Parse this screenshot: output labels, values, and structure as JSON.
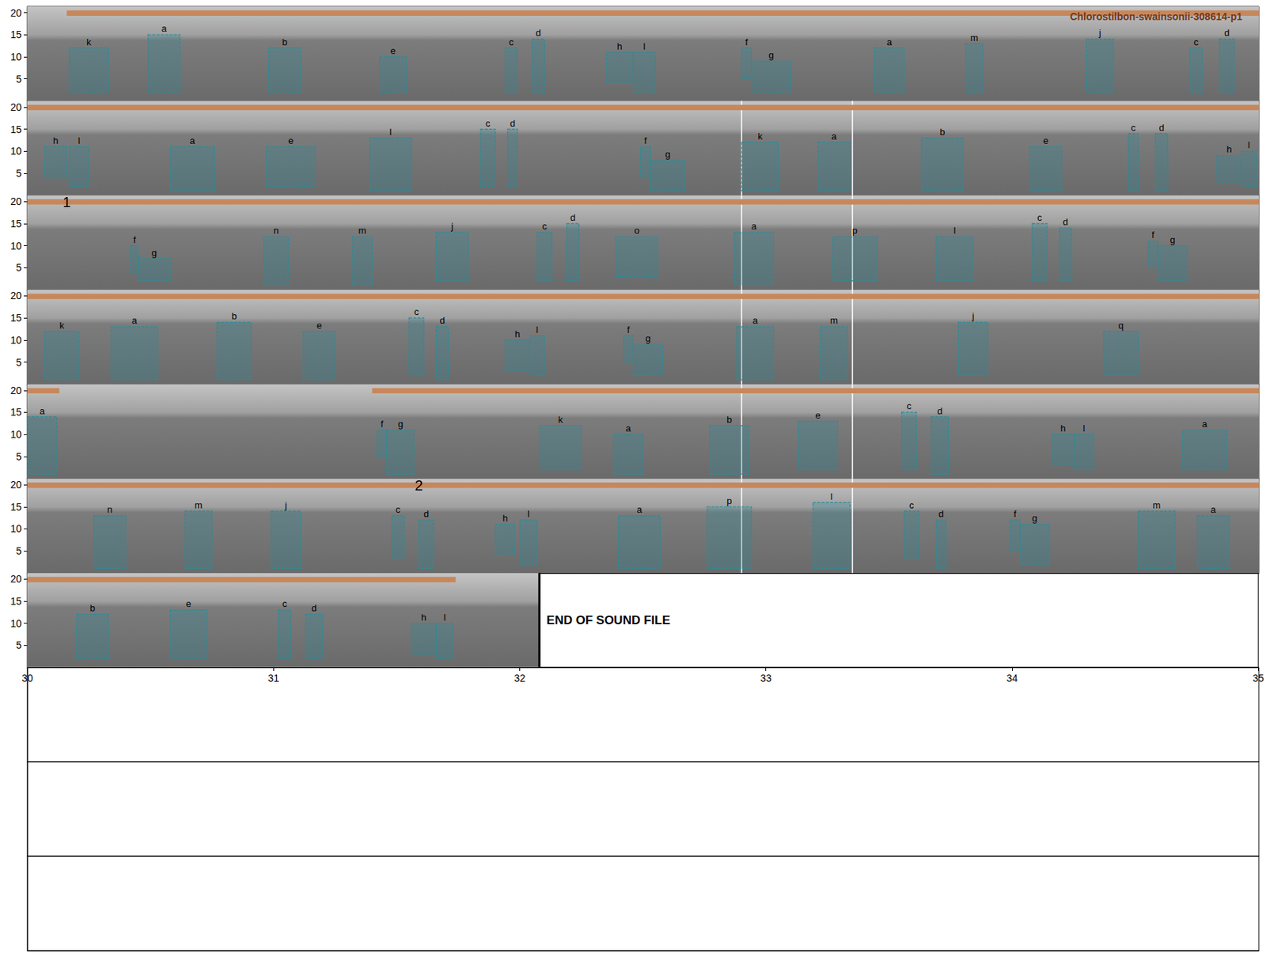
{
  "chart_data": {
    "type": "spectrogram",
    "title": "Chlorostilbon-swainsonii-308614-p1",
    "color": "#2b8c99",
    "ylim": [
      0,
      21.4
    ],
    "yticks": [
      5,
      10,
      15,
      20
    ],
    "rows": [
      {
        "xlim": [
          0,
          5
        ]
      },
      {
        "xlim": [
          5,
          10
        ]
      },
      {
        "xlim": [
          10,
          15
        ]
      },
      {
        "xlim": [
          15,
          20
        ]
      },
      {
        "xlim": [
          20,
          25
        ]
      },
      {
        "xlim": [
          25,
          30
        ]
      },
      {
        "xlim": [
          30,
          35
        ],
        "xticks": [
          30,
          31,
          32,
          33,
          34,
          35
        ]
      },
      {
        "xlim": [
          35,
          40
        ],
        "tick_labels": false
      },
      {
        "xlim": [
          40,
          45
        ],
        "tick_labels": false
      },
      {
        "xlim": [
          45,
          50
        ],
        "tick_labels": false
      }
    ],
    "recording_bar": {
      "color": "#c8875a",
      "band": [
        19.3,
        20.5
      ],
      "segments": [
        [
          0.16,
          20.13
        ],
        [
          21.4,
          31.74
        ]
      ]
    },
    "vlines": [
      7.9,
      8.35,
      12.9,
      13.35,
      17.9,
      18.35,
      22.9,
      23.35,
      27.9,
      28.35
    ],
    "markers": [
      {
        "text": "1",
        "x": 10.16
      },
      {
        "text": "2",
        "x": 26.59
      }
    ],
    "end_of_file": 32.08,
    "end_text": "END OF SOUND FILE",
    "annotations": [
      {
        "label": "k",
        "start": 0.17,
        "end": 0.33,
        "low": 2,
        "high": 12
      },
      {
        "label": "a",
        "start": 0.49,
        "end": 0.62,
        "low": 2,
        "high": 15
      },
      {
        "label": "b",
        "start": 0.98,
        "end": 1.11,
        "low": 2,
        "high": 12
      },
      {
        "label": "e",
        "start": 1.43,
        "end": 1.54,
        "low": 2,
        "high": 10
      },
      {
        "label": "c",
        "start": 1.94,
        "end": 1.99,
        "low": 2,
        "high": 12
      },
      {
        "label": "d",
        "start": 2.05,
        "end": 2.1,
        "low": 2,
        "high": 14
      },
      {
        "label": "h",
        "start": 2.35,
        "end": 2.46,
        "low": 4,
        "high": 11
      },
      {
        "label": "l",
        "start": 2.46,
        "end": 2.55,
        "low": 2,
        "high": 11
      },
      {
        "label": "f",
        "start": 2.9,
        "end": 2.94,
        "low": 5,
        "high": 12
      },
      {
        "label": "g",
        "start": 2.94,
        "end": 3.1,
        "low": 2,
        "high": 9
      },
      {
        "label": "a",
        "start": 3.44,
        "end": 3.56,
        "low": 2,
        "high": 12
      },
      {
        "label": "m",
        "start": 3.81,
        "end": 3.88,
        "low": 2,
        "high": 13
      },
      {
        "label": "j",
        "start": 4.3,
        "end": 4.41,
        "low": 2,
        "high": 14
      },
      {
        "label": "c",
        "start": 4.72,
        "end": 4.77,
        "low": 2,
        "high": 12
      },
      {
        "label": "d",
        "start": 4.84,
        "end": 4.9,
        "low": 2,
        "high": 14
      },
      {
        "label": "h",
        "start": 5.07,
        "end": 5.16,
        "low": 4,
        "high": 11
      },
      {
        "label": "l",
        "start": 5.17,
        "end": 5.25,
        "low": 2,
        "high": 11
      },
      {
        "label": "a",
        "start": 5.58,
        "end": 5.76,
        "low": 1,
        "high": 11
      },
      {
        "label": "e",
        "start": 5.97,
        "end": 6.17,
        "low": 2,
        "high": 11
      },
      {
        "label": "l",
        "start": 6.39,
        "end": 6.56,
        "low": 1,
        "high": 13
      },
      {
        "label": "c",
        "start": 6.84,
        "end": 6.9,
        "low": 2,
        "high": 15
      },
      {
        "label": "d",
        "start": 6.95,
        "end": 6.99,
        "low": 2,
        "high": 15
      },
      {
        "label": "f",
        "start": 7.49,
        "end": 7.53,
        "low": 4,
        "high": 11
      },
      {
        "label": "g",
        "start": 7.53,
        "end": 7.67,
        "low": 1,
        "high": 8
      },
      {
        "label": "k",
        "start": 7.9,
        "end": 8.05,
        "low": 1,
        "high": 12
      },
      {
        "label": "a",
        "start": 8.21,
        "end": 8.34,
        "low": 1,
        "high": 12
      },
      {
        "label": "b",
        "start": 8.63,
        "end": 8.8,
        "low": 1,
        "high": 13
      },
      {
        "label": "e",
        "start": 9.07,
        "end": 9.2,
        "low": 1,
        "high": 11
      },
      {
        "label": "c",
        "start": 9.47,
        "end": 9.51,
        "low": 1,
        "high": 14
      },
      {
        "label": "d",
        "start": 9.58,
        "end": 9.63,
        "low": 1,
        "high": 14
      },
      {
        "label": "h",
        "start": 9.83,
        "end": 9.93,
        "low": 3,
        "high": 9
      },
      {
        "label": "l",
        "start": 9.93,
        "end": 9.99,
        "low": 2,
        "high": 10
      },
      {
        "label": "f",
        "start": 10.42,
        "end": 10.45,
        "low": 4,
        "high": 10
      },
      {
        "label": "g",
        "start": 10.45,
        "end": 10.58,
        "low": 2,
        "high": 7
      },
      {
        "label": "n",
        "start": 10.96,
        "end": 11.06,
        "low": 1,
        "high": 12
      },
      {
        "label": "m",
        "start": 11.32,
        "end": 11.4,
        "low": 1,
        "high": 12
      },
      {
        "label": "j",
        "start": 11.66,
        "end": 11.79,
        "low": 2,
        "high": 13
      },
      {
        "label": "c",
        "start": 12.07,
        "end": 12.13,
        "low": 2,
        "high": 13
      },
      {
        "label": "d",
        "start": 12.19,
        "end": 12.24,
        "low": 2,
        "high": 15
      },
      {
        "label": "o",
        "start": 12.39,
        "end": 12.56,
        "low": 3,
        "high": 12
      },
      {
        "label": "a",
        "start": 12.87,
        "end": 13.03,
        "low": 1,
        "high": 13
      },
      {
        "label": "p",
        "start": 13.27,
        "end": 13.45,
        "low": 2,
        "high": 12
      },
      {
        "label": "l",
        "start": 13.69,
        "end": 13.84,
        "low": 2,
        "high": 12
      },
      {
        "label": "c",
        "start": 14.08,
        "end": 14.14,
        "low": 2,
        "high": 15
      },
      {
        "label": "d",
        "start": 14.19,
        "end": 14.24,
        "low": 2,
        "high": 14
      },
      {
        "label": "f",
        "start": 14.55,
        "end": 14.59,
        "low": 5,
        "high": 11
      },
      {
        "label": "g",
        "start": 14.59,
        "end": 14.71,
        "low": 2,
        "high": 10
      },
      {
        "label": "k",
        "start": 15.07,
        "end": 15.21,
        "low": 1,
        "high": 12
      },
      {
        "label": "a",
        "start": 15.34,
        "end": 15.53,
        "low": 1,
        "high": 13
      },
      {
        "label": "b",
        "start": 15.77,
        "end": 15.91,
        "low": 1,
        "high": 14
      },
      {
        "label": "e",
        "start": 16.12,
        "end": 16.25,
        "low": 1,
        "high": 12
      },
      {
        "label": "c",
        "start": 16.55,
        "end": 16.61,
        "low": 2,
        "high": 15
      },
      {
        "label": "d",
        "start": 16.66,
        "end": 16.71,
        "low": 1,
        "high": 13
      },
      {
        "label": "h",
        "start": 16.94,
        "end": 17.04,
        "low": 3,
        "high": 10
      },
      {
        "label": "l",
        "start": 17.04,
        "end": 17.1,
        "low": 2,
        "high": 11
      },
      {
        "label": "f",
        "start": 17.42,
        "end": 17.46,
        "low": 5,
        "high": 11
      },
      {
        "label": "g",
        "start": 17.46,
        "end": 17.58,
        "low": 2,
        "high": 9
      },
      {
        "label": "a",
        "start": 17.88,
        "end": 18.03,
        "low": 1,
        "high": 13
      },
      {
        "label": "m",
        "start": 18.22,
        "end": 18.33,
        "low": 1,
        "high": 13
      },
      {
        "label": "j",
        "start": 18.78,
        "end": 18.9,
        "low": 2,
        "high": 14
      },
      {
        "label": "q",
        "start": 19.37,
        "end": 19.51,
        "low": 2,
        "high": 12
      },
      {
        "label": "a",
        "start": 20.0,
        "end": 20.12,
        "low": 1,
        "high": 14
      },
      {
        "label": "f",
        "start": 21.42,
        "end": 21.46,
        "low": 5,
        "high": 11
      },
      {
        "label": "g",
        "start": 21.46,
        "end": 21.57,
        "low": 1,
        "high": 11
      },
      {
        "label": "k",
        "start": 22.08,
        "end": 22.25,
        "low": 2,
        "high": 12
      },
      {
        "label": "a",
        "start": 22.38,
        "end": 22.5,
        "low": 1,
        "high": 10
      },
      {
        "label": "b",
        "start": 22.77,
        "end": 22.93,
        "low": 1,
        "high": 12
      },
      {
        "label": "e",
        "start": 23.13,
        "end": 23.29,
        "low": 2,
        "high": 13
      },
      {
        "label": "c",
        "start": 23.55,
        "end": 23.61,
        "low": 2,
        "high": 15
      },
      {
        "label": "d",
        "start": 23.67,
        "end": 23.74,
        "low": 1,
        "high": 14
      },
      {
        "label": "h",
        "start": 24.16,
        "end": 24.25,
        "low": 3,
        "high": 10
      },
      {
        "label": "l",
        "start": 24.25,
        "end": 24.33,
        "low": 2,
        "high": 10
      },
      {
        "label": "a",
        "start": 24.69,
        "end": 24.87,
        "low": 2,
        "high": 11
      },
      {
        "label": "n",
        "start": 25.27,
        "end": 25.4,
        "low": 1,
        "high": 13
      },
      {
        "label": "m",
        "start": 25.64,
        "end": 25.75,
        "low": 1,
        "high": 14
      },
      {
        "label": "j",
        "start": 25.99,
        "end": 26.11,
        "low": 1,
        "high": 14
      },
      {
        "label": "c",
        "start": 26.48,
        "end": 26.53,
        "low": 3,
        "high": 13
      },
      {
        "label": "d",
        "start": 26.59,
        "end": 26.65,
        "low": 1,
        "high": 12
      },
      {
        "label": "h",
        "start": 26.9,
        "end": 26.98,
        "low": 4,
        "high": 11
      },
      {
        "label": "l",
        "start": 27.0,
        "end": 27.07,
        "low": 2,
        "high": 12
      },
      {
        "label": "a",
        "start": 27.4,
        "end": 27.57,
        "low": 1,
        "high": 13
      },
      {
        "label": "p",
        "start": 27.76,
        "end": 27.94,
        "low": 1,
        "high": 15
      },
      {
        "label": "l",
        "start": 28.19,
        "end": 28.34,
        "low": 1,
        "high": 16
      },
      {
        "label": "c",
        "start": 28.56,
        "end": 28.62,
        "low": 3,
        "high": 14
      },
      {
        "label": "d",
        "start": 28.69,
        "end": 28.73,
        "low": 1,
        "high": 12
      },
      {
        "label": "f",
        "start": 28.99,
        "end": 29.03,
        "low": 5,
        "high": 12
      },
      {
        "label": "g",
        "start": 29.03,
        "end": 29.15,
        "low": 2,
        "high": 11
      },
      {
        "label": "m",
        "start": 29.51,
        "end": 29.66,
        "low": 1,
        "high": 14
      },
      {
        "label": "a",
        "start": 29.75,
        "end": 29.88,
        "low": 1,
        "high": 13
      },
      {
        "label": "b",
        "start": 30.2,
        "end": 30.33,
        "low": 2,
        "high": 12
      },
      {
        "label": "e",
        "start": 30.58,
        "end": 30.73,
        "low": 2,
        "high": 13
      },
      {
        "label": "c",
        "start": 31.02,
        "end": 31.07,
        "low": 2,
        "high": 13
      },
      {
        "label": "d",
        "start": 31.13,
        "end": 31.2,
        "low": 2,
        "high": 12
      },
      {
        "label": "h",
        "start": 31.56,
        "end": 31.66,
        "low": 3,
        "high": 10
      },
      {
        "label": "l",
        "start": 31.66,
        "end": 31.73,
        "low": 2,
        "high": 10
      }
    ]
  }
}
